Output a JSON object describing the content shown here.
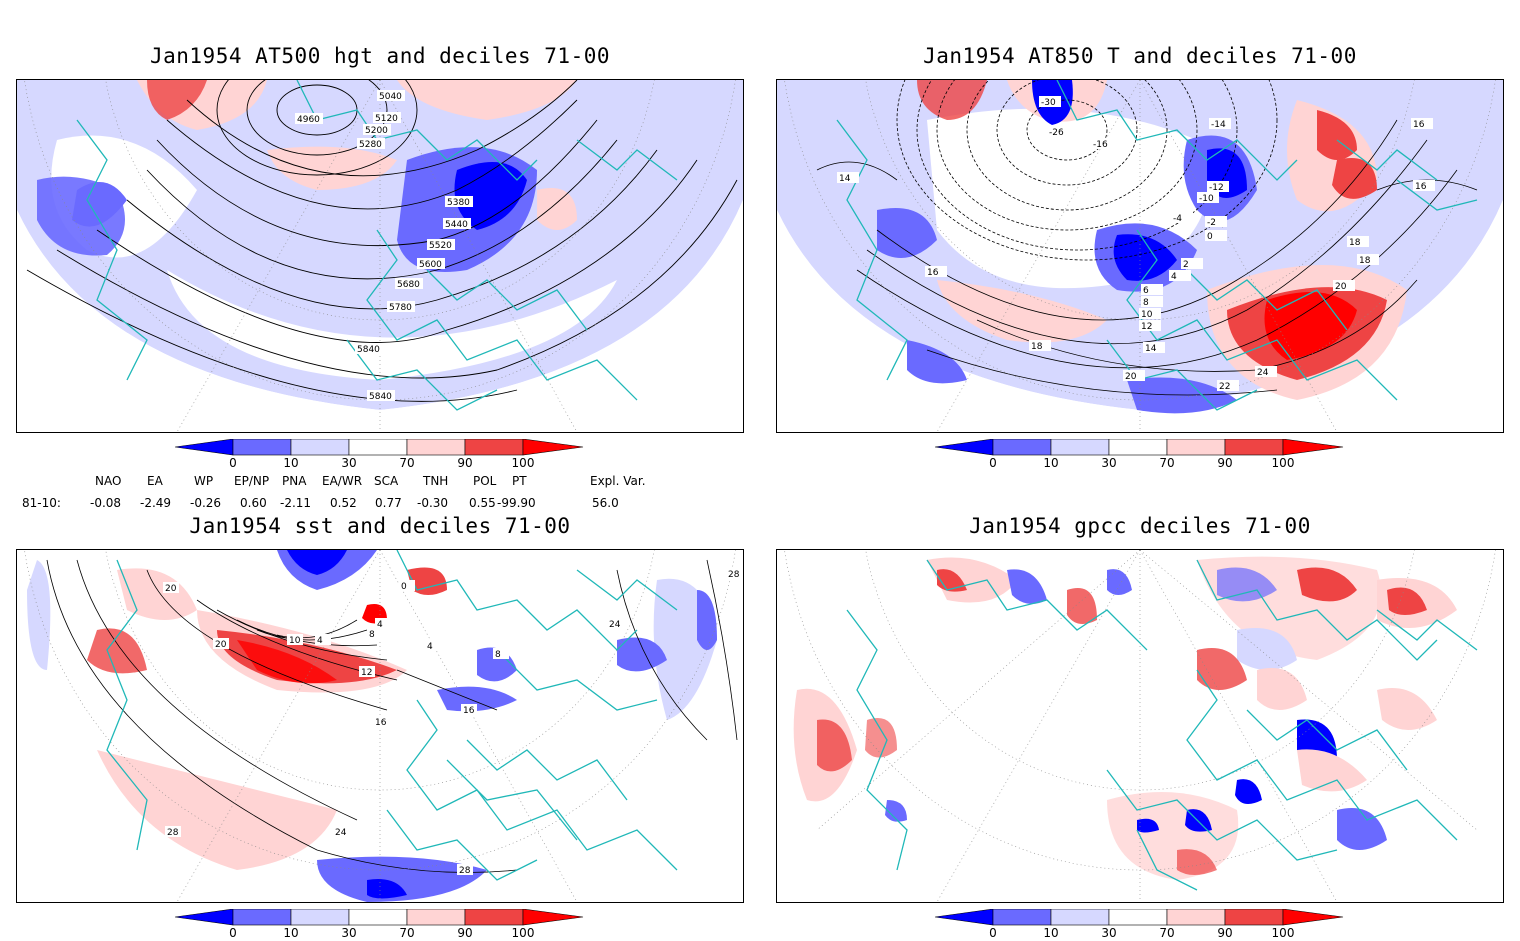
{
  "panels": [
    {
      "id": "p1",
      "title": "Jan1954 AT500 hgt and deciles 71-00",
      "contour_labels": [
        "5040",
        "4960",
        "5120",
        "5200",
        "5280",
        "5380",
        "5440",
        "5520",
        "5600",
        "5680",
        "5780",
        "5840",
        "5840"
      ]
    },
    {
      "id": "p2",
      "title": "Jan1954 AT850 T and deciles 71-00",
      "contour_labels": [
        "-30",
        "-26",
        "-16",
        "-14",
        "-12",
        "-10",
        "-4",
        "-2",
        "0",
        "2",
        "4",
        "6",
        "8",
        "10",
        "12",
        "14",
        "16",
        "16",
        "14",
        "18",
        "20",
        "24",
        "22",
        "18",
        "16",
        "18",
        "20"
      ]
    },
    {
      "id": "p3",
      "title": "Jan1954 sst and deciles 71-00",
      "contour_labels": [
        "20",
        "20",
        "4",
        "8",
        "10",
        "4",
        "12",
        "16",
        "16",
        "24",
        "28",
        "28",
        "28",
        "24",
        "0",
        "4",
        "8"
      ]
    },
    {
      "id": "p4",
      "title": "Jan1954 gpcc deciles 71-00",
      "contour_labels": []
    }
  ],
  "colorbar": {
    "ticks": [
      "0",
      "10",
      "30",
      "70",
      "90",
      "100"
    ],
    "colors": [
      "#0000ff",
      "#6a6aff",
      "#d6d8ff",
      "#ffffff",
      "#ffd4d4",
      "#ee4444",
      "#ff0000"
    ]
  },
  "indices": {
    "headers": [
      "NAO",
      "EA",
      "WP",
      "EP/NP",
      "PNA",
      "EA/WR",
      "SCA",
      "TNH",
      "POL",
      "PT",
      "Expl. Var."
    ],
    "row_label": "81-10:",
    "values": [
      "-0.08",
      "-2.49",
      "-0.26",
      "0.60",
      "-2.11",
      "0.52",
      "0.77",
      "-0.30",
      "0.55",
      "-99.90",
      "56.0"
    ]
  }
}
